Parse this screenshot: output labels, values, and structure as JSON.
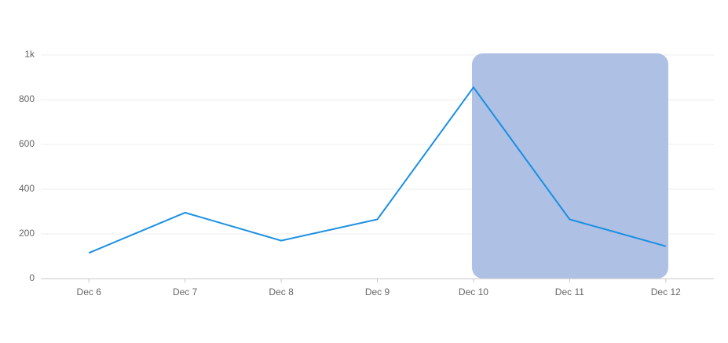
{
  "chart_data": {
    "type": "line",
    "categories": [
      "Dec 6",
      "Dec 7",
      "Dec 8",
      "Dec 9",
      "Dec 10",
      "Dec 11",
      "Dec 12"
    ],
    "series": [
      {
        "color": "#1a8fe3",
        "values": [
          115,
          295,
          170,
          265,
          855,
          265,
          145
        ]
      }
    ],
    "ylim": [
      0,
      1000
    ],
    "yticks": [
      0,
      200,
      400,
      600,
      800,
      {
        "value": 1000,
        "label": "1k"
      }
    ],
    "grid": true
  }
}
